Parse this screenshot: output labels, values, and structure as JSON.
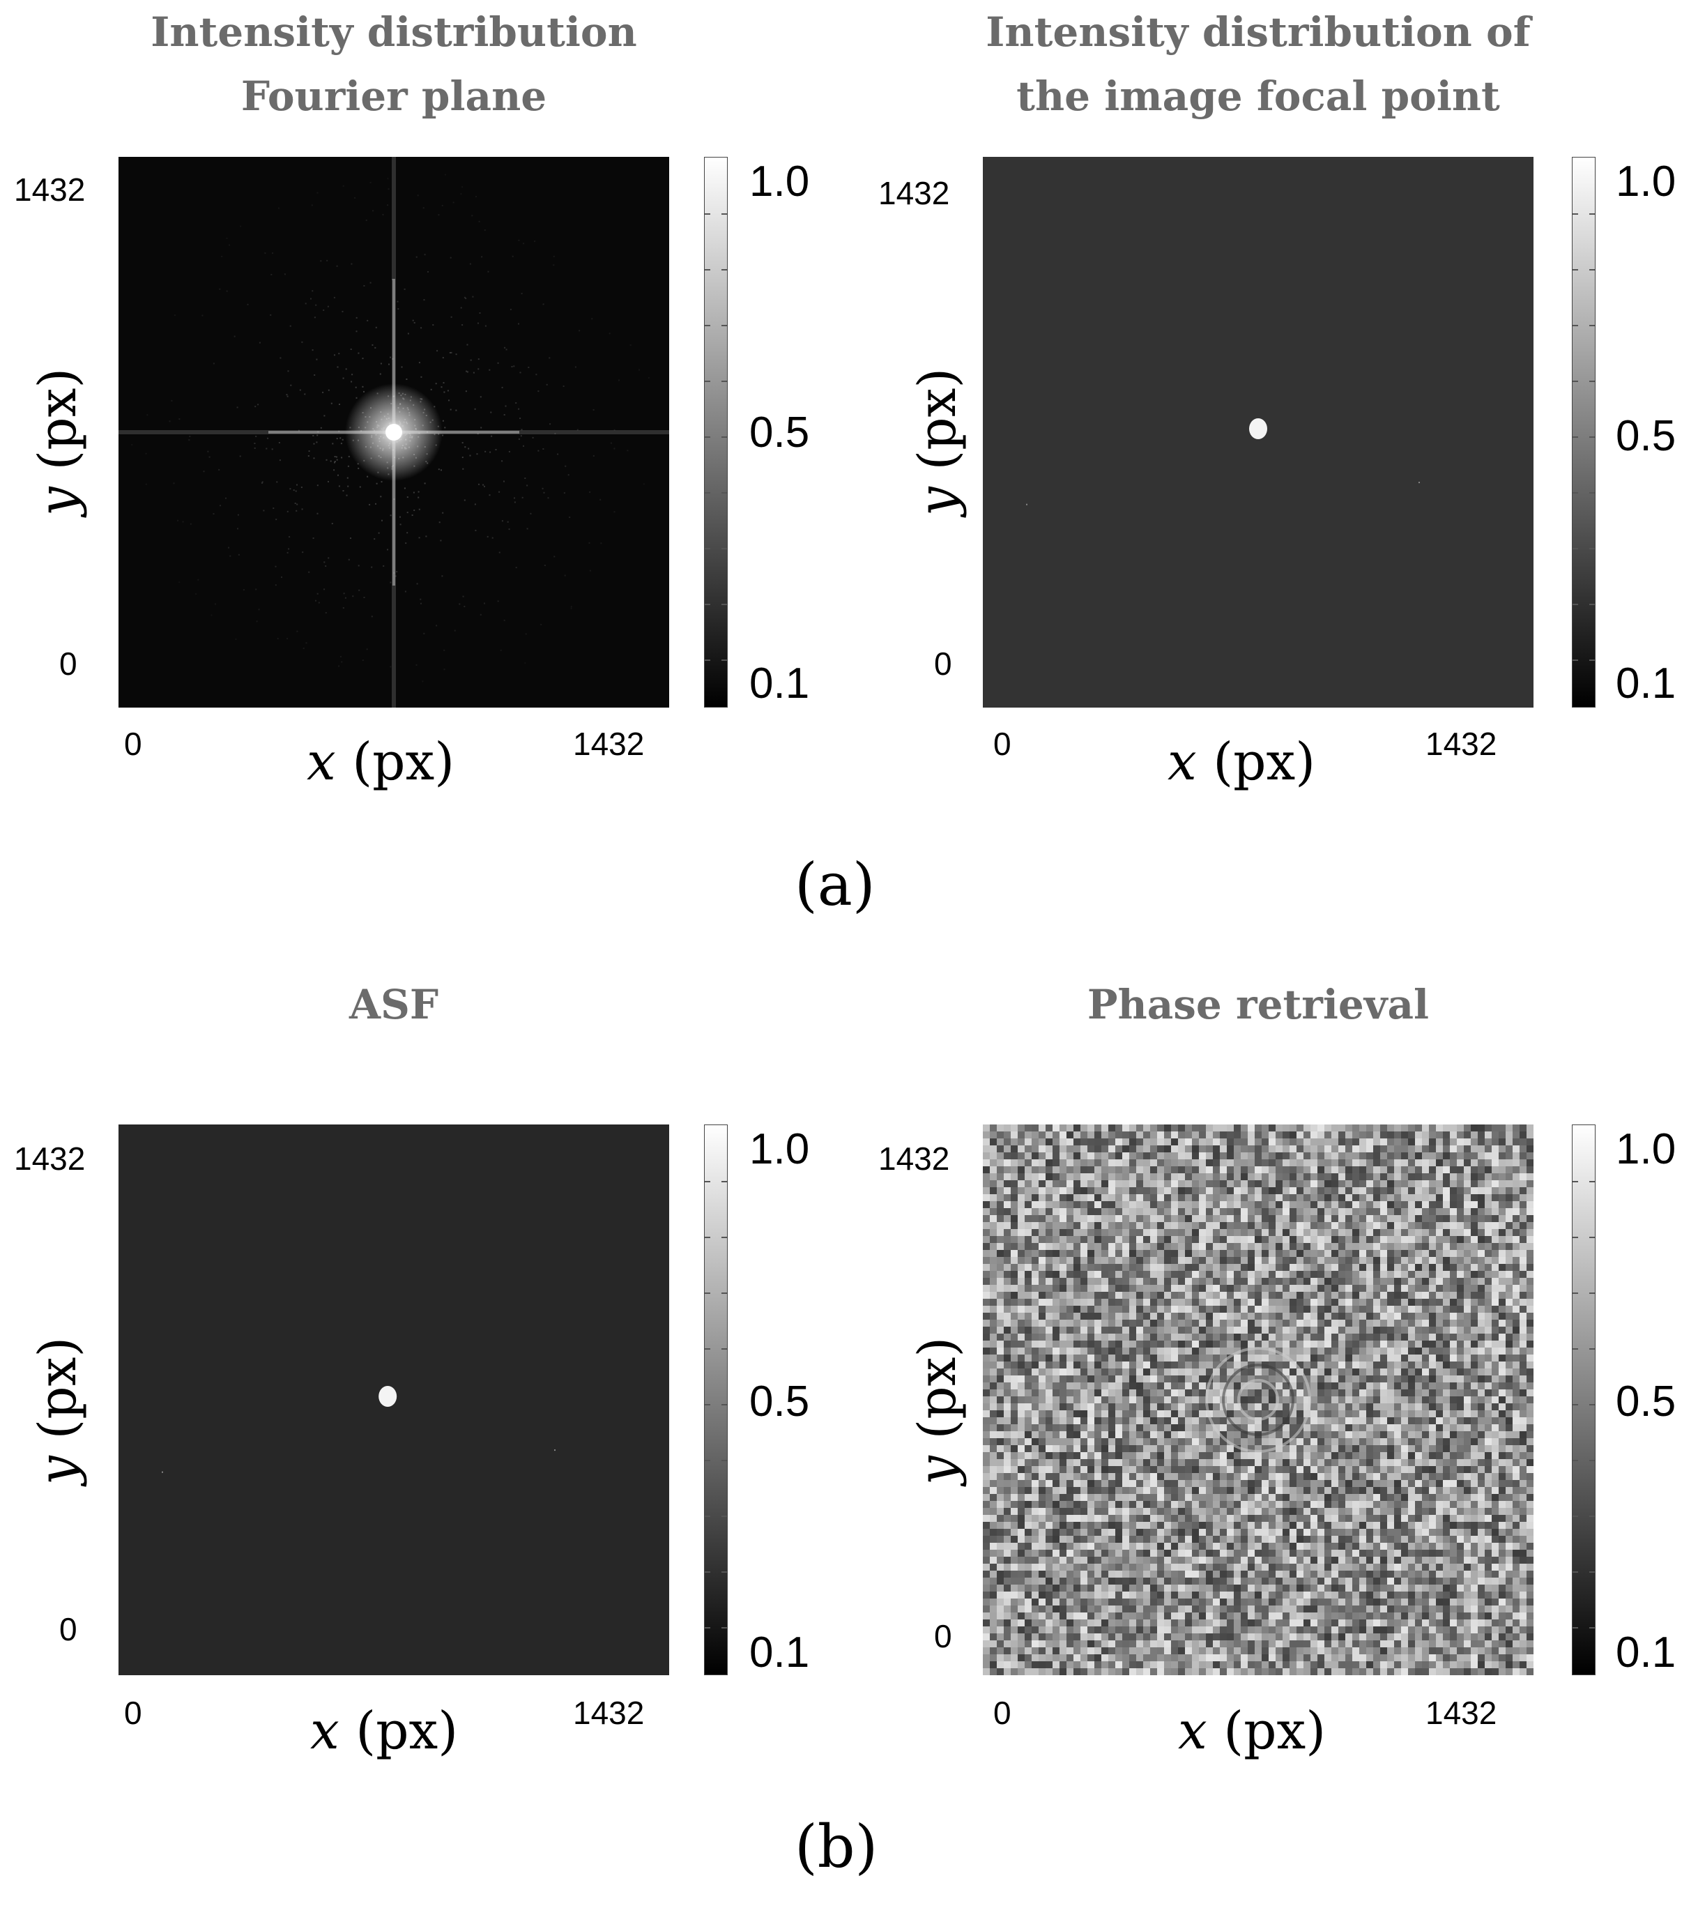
{
  "chart_data": [
    {
      "type": "heatmap",
      "title": "Intensity distribution Fourier plane",
      "title_lines": [
        "Intensity distribution",
        "Fourier plane"
      ],
      "xlabel_var": "x",
      "xlabel_unit": "(px)",
      "ylabel_var": "y",
      "ylabel_unit": "(px)",
      "xticks": [
        "0",
        "1432"
      ],
      "yticks": [
        "0",
        "1432"
      ],
      "xlim": [
        0,
        1432
      ],
      "ylim": [
        0,
        1432
      ],
      "colorbar": {
        "ticks": [
          "0.1",
          "0.5",
          "1.0"
        ],
        "range": [
          0.1,
          1.0
        ],
        "colormap": "gray"
      },
      "pattern": "bright central peak with cross-shaped streaks on black background",
      "peak": {
        "x": 716,
        "y": 716
      }
    },
    {
      "type": "heatmap",
      "title": "Intensity distribution of the image focal point",
      "title_lines": [
        "Intensity distribution of",
        "the image focal point"
      ],
      "xlabel_var": "x",
      "xlabel_unit": "(px)",
      "ylabel_var": "y",
      "ylabel_unit": "(px)",
      "xticks": [
        "0",
        "1432"
      ],
      "yticks": [
        "0",
        "1432"
      ],
      "xlim": [
        0,
        1432
      ],
      "ylim": [
        0,
        1432
      ],
      "colorbar": {
        "ticks": [
          "0.1",
          "0.5",
          "1.0"
        ],
        "range": [
          0.1,
          1.0
        ],
        "colormap": "gray"
      },
      "pattern": "single small bright spot on uniform dark gray background",
      "peak": {
        "x": 716,
        "y": 725
      }
    },
    {
      "type": "heatmap",
      "title": "ASF",
      "title_lines": [
        "ASF"
      ],
      "xlabel_var": "x",
      "xlabel_unit": "(px)",
      "ylabel_var": "y",
      "ylabel_unit": "(px)",
      "xticks": [
        "0",
        "1432"
      ],
      "yticks": [
        "0",
        "1432"
      ],
      "xlim": [
        0,
        1432
      ],
      "ylim": [
        0,
        1432
      ],
      "colorbar": {
        "ticks": [
          "0.1",
          "0.5",
          "1.0"
        ],
        "range": [
          0.1,
          1.0
        ],
        "colormap": "gray"
      },
      "pattern": "single small bright spot on uniform dark gray background",
      "peak": {
        "x": 700,
        "y": 725
      }
    },
    {
      "type": "heatmap",
      "title": "Phase retrieval",
      "title_lines": [
        "Phase retrieval"
      ],
      "xlabel_var": "x",
      "xlabel_unit": "(px)",
      "ylabel_var": "y",
      "ylabel_unit": "(px)",
      "xticks": [
        "0",
        "1432"
      ],
      "yticks": [
        "0",
        "1432"
      ],
      "xlim": [
        0,
        1432
      ],
      "ylim": [
        0,
        1432
      ],
      "colorbar": {
        "ticks": [
          "0.1",
          "0.5",
          "1.0"
        ],
        "range": [
          0.1,
          1.0
        ],
        "colormap": "gray"
      },
      "pattern": "gray speckle noise with faint ring structure near center"
    }
  ],
  "captions": [
    "(a)",
    "(b)"
  ]
}
